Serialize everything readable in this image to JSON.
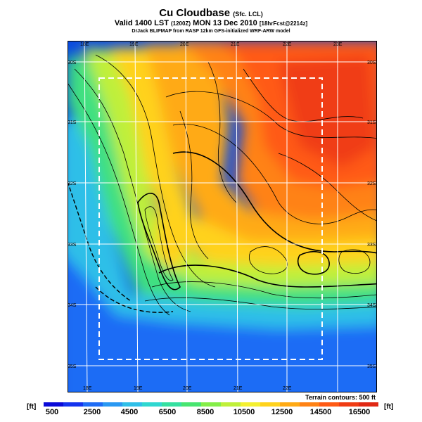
{
  "title": {
    "main": "Cu Cloudbase",
    "main_suffix": "(Sfc. LCL)",
    "valid": "Valid 1400 LST",
    "valid_code": "(1200Z)",
    "valid_date": "MON 13 Dec 2010",
    "forecast": "[18hrFcst@2214z]",
    "credit": "DrJack BLIPMAP from RASP 12km GFS-initialized WRF-ARW model"
  },
  "map": {
    "lon_labels_top": [
      "18E",
      "19E",
      "20E",
      "21E",
      "22E",
      "23E"
    ],
    "lon_labels_bottom": [
      "18E",
      "19E",
      "20E",
      "21E",
      "22E"
    ],
    "lat_labels_left": [
      "30S",
      "31S",
      "32S",
      "33S",
      "34S",
      "35S"
    ],
    "lat_labels_right": [
      "30S",
      "31S",
      "32S",
      "33S",
      "34S",
      "35S"
    ],
    "terrain_note": "Terrain contours: 500 ft"
  },
  "colorbar": {
    "unit_left": "[ft]",
    "unit_right": "[ft]",
    "tick_labels": [
      "500",
      "2500",
      "4500",
      "6500",
      "8500",
      "10500",
      "12500",
      "14500",
      "16500"
    ],
    "colors": [
      "#0a0ad8",
      "#1433ee",
      "#1e6cf5",
      "#2a98f2",
      "#2fbfe8",
      "#2fd7d0",
      "#35e0a0",
      "#48e570",
      "#84ee48",
      "#bff03a",
      "#f4f030",
      "#ffd21c",
      "#ffaa14",
      "#ff8214",
      "#ff5a14",
      "#f03c14",
      "#e02814"
    ]
  }
}
